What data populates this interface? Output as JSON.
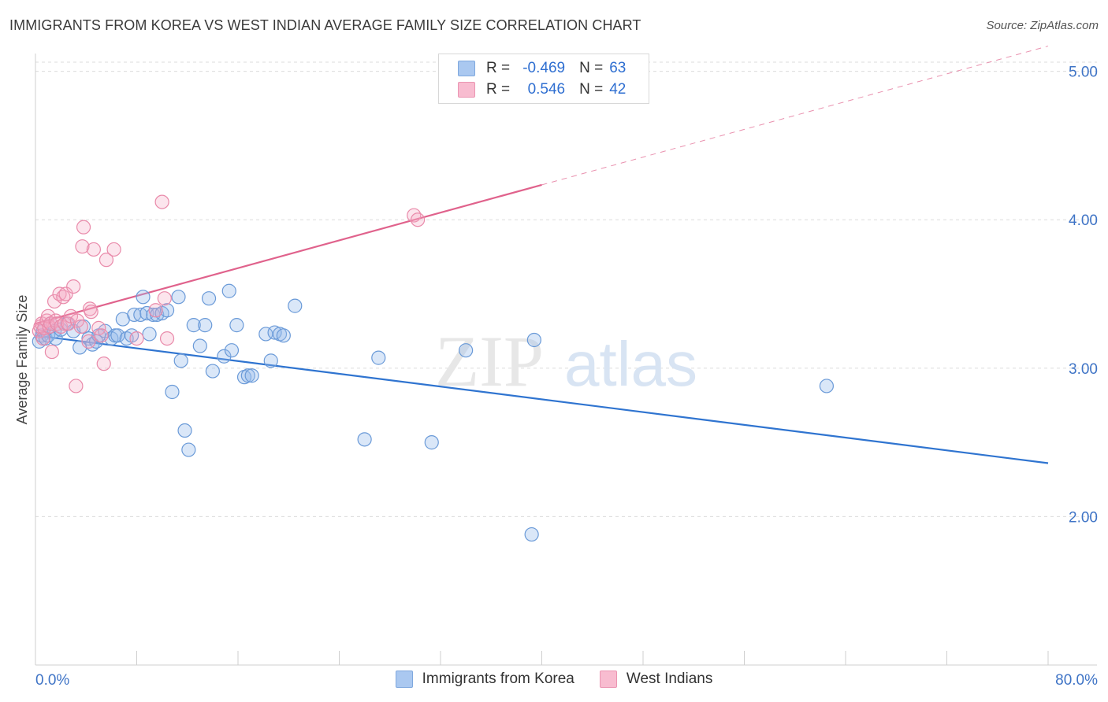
{
  "header": {
    "title": "IMMIGRANTS FROM KOREA VS WEST INDIAN AVERAGE FAMILY SIZE CORRELATION CHART",
    "source": "Source: ZipAtlas.com"
  },
  "watermark": {
    "zip": "ZIP",
    "atlas": "atlas"
  },
  "legend": {
    "series": [
      {
        "swatch_color": "#aac8f0",
        "r_label": "R =",
        "r_value": "-0.469",
        "n_label": "N =",
        "n_value": "63"
      },
      {
        "swatch_color": "#f8bcd0",
        "r_label": "R =",
        "r_value": "0.546",
        "n_label": "N =",
        "n_value": "42"
      }
    ]
  },
  "bottom_legend": [
    {
      "label": "Immigrants from Korea",
      "swatch_color": "#aac8f0"
    },
    {
      "label": "West Indians",
      "swatch_color": "#f8bcd0"
    }
  ],
  "colors": {
    "blue_stroke": "#6a9ad8",
    "blue_fill": "rgba(150,185,235,0.35)",
    "blue_line": "#2f74d0",
    "pink_stroke": "#e98aaa",
    "pink_fill": "rgba(245,170,195,0.30)",
    "pink_line": "#e0628c",
    "axis_label": "#3f74c6"
  },
  "chart_data": {
    "type": "scatter",
    "title": "IMMIGRANTS FROM KOREA VS WEST INDIAN AVERAGE FAMILY SIZE CORRELATION CHART",
    "xlabel": "",
    "ylabel": "Average Family Size",
    "xlim": [
      0,
      80
    ],
    "ylim": [
      1.0,
      5.12
    ],
    "x_tick_labels": [
      "0.0%",
      "80.0%"
    ],
    "y_ticks": [
      2.0,
      3.0,
      4.0,
      5.0
    ],
    "y_tick_labels": [
      "2.00",
      "3.00",
      "4.00",
      "5.00"
    ],
    "grid": true,
    "series": [
      {
        "name": "Immigrants from Korea",
        "color": "#6a9ad8",
        "points": [
          [
            0.3,
            3.18
          ],
          [
            0.5,
            3.22
          ],
          [
            0.6,
            3.25
          ],
          [
            0.8,
            3.2
          ],
          [
            1.0,
            3.22
          ],
          [
            1.2,
            3.3
          ],
          [
            1.5,
            3.25
          ],
          [
            1.6,
            3.2
          ],
          [
            2.0,
            3.26
          ],
          [
            2.5,
            3.3
          ],
          [
            3.0,
            3.25
          ],
          [
            3.5,
            3.14
          ],
          [
            3.8,
            3.28
          ],
          [
            4.2,
            3.2
          ],
          [
            4.5,
            3.16
          ],
          [
            4.8,
            3.18
          ],
          [
            5.0,
            3.22
          ],
          [
            5.5,
            3.25
          ],
          [
            6.0,
            3.2
          ],
          [
            6.3,
            3.22
          ],
          [
            6.5,
            3.22
          ],
          [
            6.9,
            3.33
          ],
          [
            7.2,
            3.2
          ],
          [
            7.6,
            3.22
          ],
          [
            7.8,
            3.36
          ],
          [
            8.3,
            3.36
          ],
          [
            8.5,
            3.48
          ],
          [
            8.8,
            3.37
          ],
          [
            9.0,
            3.23
          ],
          [
            9.3,
            3.36
          ],
          [
            9.6,
            3.36
          ],
          [
            10.0,
            3.37
          ],
          [
            10.4,
            3.39
          ],
          [
            10.8,
            2.84
          ],
          [
            11.3,
            3.48
          ],
          [
            11.5,
            3.05
          ],
          [
            11.8,
            2.58
          ],
          [
            12.1,
            2.45
          ],
          [
            12.5,
            3.29
          ],
          [
            13.0,
            3.15
          ],
          [
            13.4,
            3.29
          ],
          [
            13.7,
            3.47
          ],
          [
            14.0,
            2.98
          ],
          [
            14.9,
            3.08
          ],
          [
            15.3,
            3.52
          ],
          [
            15.5,
            3.12
          ],
          [
            15.9,
            3.29
          ],
          [
            16.5,
            2.94
          ],
          [
            16.8,
            2.95
          ],
          [
            17.1,
            2.95
          ],
          [
            18.2,
            3.23
          ],
          [
            18.6,
            3.05
          ],
          [
            18.9,
            3.24
          ],
          [
            19.3,
            3.23
          ],
          [
            19.6,
            3.22
          ],
          [
            20.5,
            3.42
          ],
          [
            26.0,
            2.52
          ],
          [
            27.1,
            3.07
          ],
          [
            31.3,
            2.5
          ],
          [
            34.0,
            3.12
          ],
          [
            39.2,
            1.88
          ],
          [
            39.4,
            3.19
          ],
          [
            62.5,
            2.88
          ]
        ],
        "trend": {
          "x": [
            0,
            80
          ],
          "y": [
            3.22,
            2.36
          ]
        }
      },
      {
        "name": "West Indians",
        "color": "#e98aaa",
        "points": [
          [
            0.3,
            3.25
          ],
          [
            0.4,
            3.28
          ],
          [
            0.5,
            3.3
          ],
          [
            0.6,
            3.2
          ],
          [
            0.7,
            3.27
          ],
          [
            0.9,
            3.32
          ],
          [
            1.0,
            3.35
          ],
          [
            1.1,
            3.28
          ],
          [
            1.2,
            3.3
          ],
          [
            1.3,
            3.11
          ],
          [
            1.5,
            3.45
          ],
          [
            1.6,
            3.32
          ],
          [
            1.7,
            3.3
          ],
          [
            1.9,
            3.5
          ],
          [
            2.0,
            3.28
          ],
          [
            2.2,
            3.48
          ],
          [
            2.3,
            3.3
          ],
          [
            2.4,
            3.5
          ],
          [
            2.6,
            3.3
          ],
          [
            2.8,
            3.35
          ],
          [
            3.0,
            3.55
          ],
          [
            3.2,
            2.88
          ],
          [
            3.3,
            3.32
          ],
          [
            3.6,
            3.28
          ],
          [
            3.7,
            3.82
          ],
          [
            3.8,
            3.95
          ],
          [
            4.2,
            3.18
          ],
          [
            4.3,
            3.4
          ],
          [
            4.4,
            3.38
          ],
          [
            4.6,
            3.8
          ],
          [
            5.0,
            3.27
          ],
          [
            5.2,
            3.22
          ],
          [
            5.4,
            3.03
          ],
          [
            5.6,
            3.73
          ],
          [
            6.2,
            3.8
          ],
          [
            8.0,
            3.2
          ],
          [
            9.5,
            3.39
          ],
          [
            10.0,
            4.12
          ],
          [
            10.2,
            3.47
          ],
          [
            10.4,
            3.2
          ],
          [
            29.9,
            4.03
          ],
          [
            30.2,
            4.0
          ]
        ],
        "trend": {
          "x": [
            0,
            80
          ],
          "y": [
            3.3,
            5.17
          ],
          "solid_until_x": 40
        }
      }
    ]
  }
}
